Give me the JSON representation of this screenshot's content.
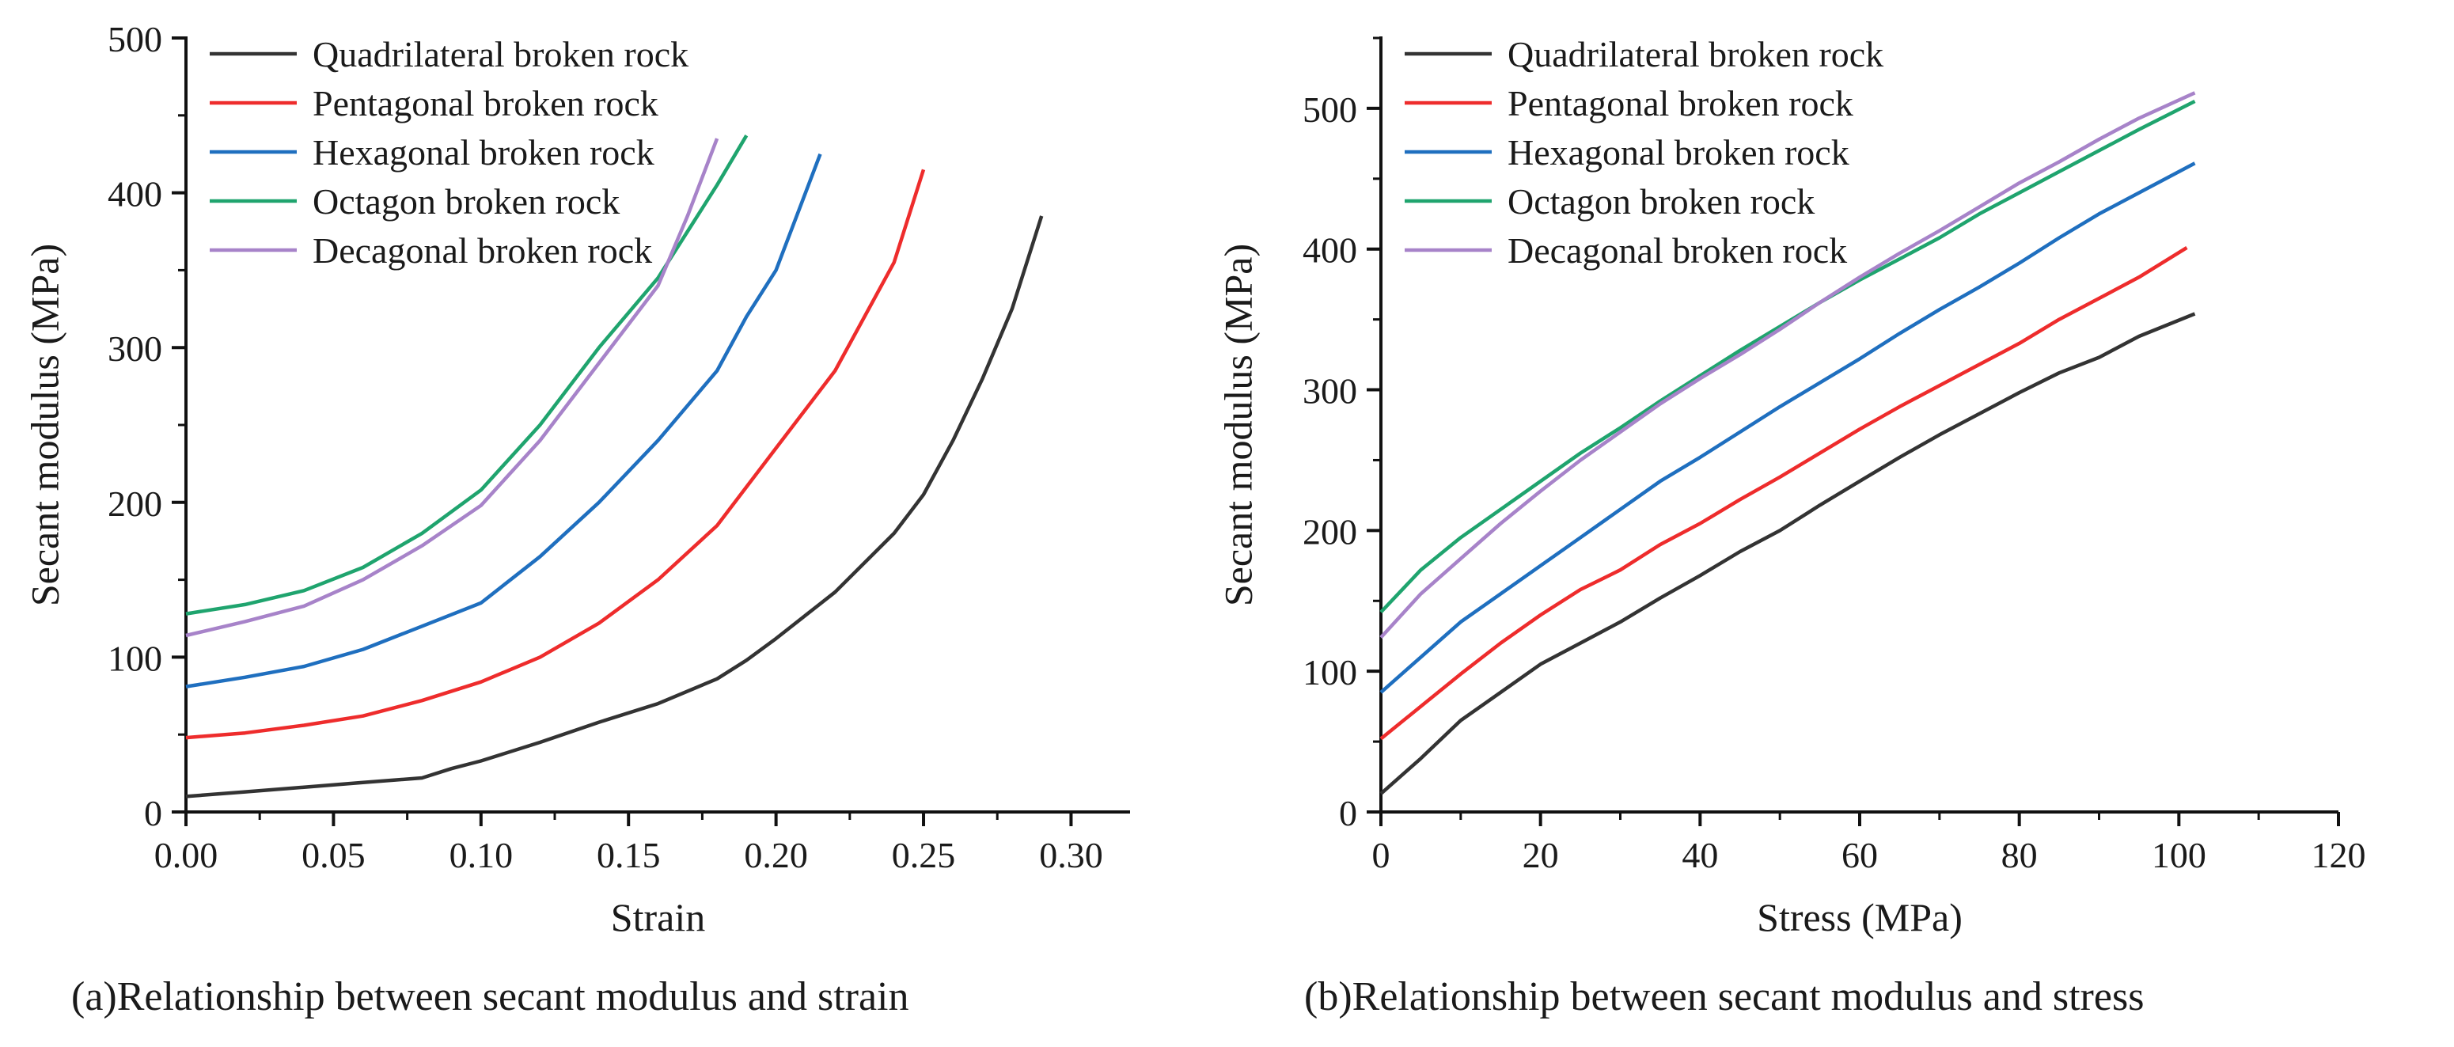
{
  "colors": {
    "quadrilateral": "#333333",
    "pentagonal": "#ee2c2c",
    "hexagonal": "#1f6fbf",
    "octagon": "#1fa46e",
    "decagonal": "#a783c9"
  },
  "chart_data": [
    {
      "type": "line",
      "panel": "a",
      "caption": "(a)Relationship between secant modulus and strain",
      "title": "",
      "xlabel": "Strain",
      "ylabel": "Secant modulus (MPa)",
      "xlim": [
        0,
        0.32
      ],
      "ylim": [
        0,
        500
      ],
      "xticks": [
        0,
        0.05,
        0.1,
        0.15,
        0.2,
        0.25,
        0.3
      ],
      "xtick_labels": [
        "0.00",
        "0.05",
        "0.10",
        "0.15",
        "0.20",
        "0.25",
        "0.30"
      ],
      "yticks": [
        0,
        100,
        200,
        300,
        400,
        500
      ],
      "ytick_labels": [
        "0",
        "100",
        "200",
        "300",
        "400",
        "500"
      ],
      "grid": false,
      "legend_position": "top-left",
      "series": [
        {
          "name": "Quadrilateral broken rock",
          "color_key": "quadrilateral",
          "x": [
            0,
            0.02,
            0.04,
            0.06,
            0.08,
            0.09,
            0.1,
            0.12,
            0.14,
            0.16,
            0.18,
            0.19,
            0.2,
            0.22,
            0.24,
            0.25,
            0.26,
            0.27,
            0.28,
            0.29
          ],
          "y": [
            10,
            13,
            16,
            19,
            22,
            28,
            33,
            45,
            58,
            70,
            86,
            98,
            112,
            142,
            180,
            205,
            240,
            280,
            325,
            385
          ]
        },
        {
          "name": "Pentagonal broken rock",
          "color_key": "pentagonal",
          "x": [
            0,
            0.02,
            0.04,
            0.06,
            0.08,
            0.1,
            0.12,
            0.14,
            0.16,
            0.18,
            0.2,
            0.22,
            0.24,
            0.25
          ],
          "y": [
            48,
            51,
            56,
            62,
            72,
            84,
            100,
            122,
            150,
            185,
            235,
            285,
            355,
            415
          ]
        },
        {
          "name": "Hexagonal broken rock",
          "color_key": "hexagonal",
          "x": [
            0,
            0.02,
            0.04,
            0.06,
            0.08,
            0.1,
            0.12,
            0.14,
            0.16,
            0.18,
            0.19,
            0.2,
            0.21,
            0.215
          ],
          "y": [
            81,
            87,
            94,
            105,
            120,
            135,
            165,
            200,
            240,
            285,
            320,
            350,
            400,
            425
          ]
        },
        {
          "name": "Octagon broken rock",
          "color_key": "octagon",
          "x": [
            0,
            0.02,
            0.04,
            0.06,
            0.08,
            0.1,
            0.12,
            0.14,
            0.16,
            0.17,
            0.18,
            0.19
          ],
          "y": [
            128,
            134,
            143,
            158,
            180,
            208,
            250,
            300,
            345,
            375,
            405,
            437
          ]
        },
        {
          "name": "Decagonal broken rock",
          "color_key": "decagonal",
          "x": [
            0,
            0.02,
            0.04,
            0.06,
            0.08,
            0.1,
            0.12,
            0.14,
            0.16,
            0.17,
            0.18
          ],
          "y": [
            114,
            123,
            133,
            150,
            172,
            198,
            240,
            290,
            340,
            385,
            435
          ]
        }
      ]
    },
    {
      "type": "line",
      "panel": "b",
      "caption": "(b)Relationship between secant modulus and stress",
      "title": "",
      "xlabel": "Stress (MPa)",
      "ylabel": "Secant modulus (MPa)",
      "xlim": [
        0,
        120
      ],
      "ylim": [
        0,
        550
      ],
      "xticks": [
        0,
        20,
        40,
        60,
        80,
        100,
        120
      ],
      "xtick_labels": [
        "0",
        "20",
        "40",
        "60",
        "80",
        "100",
        "120"
      ],
      "yticks": [
        0,
        100,
        200,
        300,
        400,
        500
      ],
      "ytick_labels": [
        "0",
        "100",
        "200",
        "300",
        "400",
        "500"
      ],
      "grid": false,
      "legend_position": "top-left",
      "series": [
        {
          "name": "Quadrilateral broken rock",
          "color_key": "quadrilateral",
          "x": [
            0,
            5,
            10,
            15,
            20,
            25,
            30,
            35,
            40,
            45,
            50,
            55,
            60,
            65,
            70,
            75,
            80,
            85,
            90,
            95,
            102
          ],
          "y": [
            13,
            38,
            65,
            85,
            105,
            120,
            135,
            152,
            168,
            185,
            200,
            218,
            235,
            252,
            268,
            283,
            298,
            312,
            323,
            338,
            354
          ]
        },
        {
          "name": "Pentagonal broken rock",
          "color_key": "pentagonal",
          "x": [
            0,
            5,
            10,
            15,
            20,
            25,
            30,
            35,
            40,
            45,
            50,
            55,
            60,
            65,
            70,
            75,
            80,
            85,
            90,
            95,
            101
          ],
          "y": [
            52,
            75,
            98,
            120,
            140,
            158,
            172,
            190,
            205,
            222,
            238,
            255,
            272,
            288,
            303,
            318,
            333,
            350,
            365,
            380,
            401
          ]
        },
        {
          "name": "Hexagonal broken rock",
          "color_key": "hexagonal",
          "x": [
            0,
            5,
            10,
            15,
            20,
            25,
            30,
            35,
            40,
            45,
            50,
            55,
            60,
            65,
            70,
            75,
            80,
            85,
            90,
            95,
            102
          ],
          "y": [
            85,
            110,
            135,
            155,
            175,
            195,
            215,
            235,
            252,
            270,
            288,
            305,
            322,
            340,
            357,
            373,
            390,
            408,
            425,
            440,
            461
          ]
        },
        {
          "name": "Octagon broken rock",
          "color_key": "octagon",
          "x": [
            0,
            5,
            10,
            15,
            20,
            25,
            30,
            35,
            40,
            45,
            50,
            55,
            60,
            65,
            70,
            75,
            80,
            85,
            90,
            95,
            102
          ],
          "y": [
            142,
            172,
            195,
            215,
            235,
            255,
            273,
            292,
            310,
            328,
            345,
            362,
            378,
            393,
            408,
            425,
            440,
            455,
            470,
            485,
            505
          ]
        },
        {
          "name": "Decagonal broken rock",
          "color_key": "decagonal",
          "x": [
            0,
            5,
            10,
            15,
            20,
            25,
            30,
            35,
            40,
            45,
            50,
            55,
            60,
            65,
            70,
            75,
            80,
            85,
            90,
            95,
            102
          ],
          "y": [
            124,
            155,
            180,
            205,
            228,
            250,
            270,
            290,
            308,
            325,
            343,
            362,
            380,
            397,
            413,
            430,
            447,
            462,
            478,
            493,
            511
          ]
        }
      ]
    }
  ]
}
